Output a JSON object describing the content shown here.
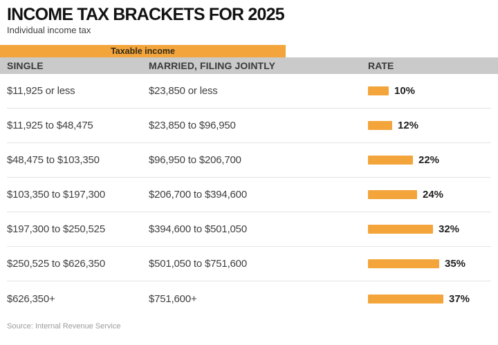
{
  "page": {
    "title": "INCOME TAX BRACKETS FOR 2025",
    "subtitle": "Individual income tax",
    "source": "Source: Internal Revenue Service"
  },
  "chart_data": {
    "type": "table",
    "title": "INCOME TAX BRACKETS FOR 2025",
    "subtitle": "Individual income tax",
    "group_header": "Taxable income",
    "columns": [
      "SINGLE",
      "MARRIED, FILING JOINTLY",
      "RATE"
    ],
    "rows": [
      {
        "single": "$11,925 or less",
        "married": "$23,850 or less",
        "rate_pct": 10,
        "rate_label": "10%"
      },
      {
        "single": "$11,925 to $48,475",
        "married": "$23,850 to $96,950",
        "rate_pct": 12,
        "rate_label": "12%"
      },
      {
        "single": "$48,475 to $103,350",
        "married": "$96,950 to $206,700",
        "rate_pct": 22,
        "rate_label": "22%"
      },
      {
        "single": "$103,350 to $197,300",
        "married": "$206,700 to $394,600",
        "rate_pct": 24,
        "rate_label": "24%"
      },
      {
        "single": "$197,300 to $250,525",
        "married": "$394,600 to $501,050",
        "rate_pct": 32,
        "rate_label": "32%"
      },
      {
        "single": "$250,525 to $626,350",
        "married": "$501,050 to $751,600",
        "rate_pct": 35,
        "rate_label": "35%"
      },
      {
        "single": "$626,350+",
        "married": "$751,600+",
        "rate_pct": 37,
        "rate_label": "37%"
      }
    ],
    "rate_axis": {
      "min": 0,
      "max": 37,
      "unit": "%"
    },
    "legend_position": "none",
    "grid": false,
    "colors": {
      "bar": "#F3A53C",
      "group_header_band": "#F3A53C",
      "column_header_bg": "#CACACA",
      "divider": "#E3E3E3",
      "title_text": "#121212",
      "body_text": "#3F3F3F",
      "source_text": "#9A9A9A"
    },
    "source": "Source: Internal Revenue Service"
  }
}
